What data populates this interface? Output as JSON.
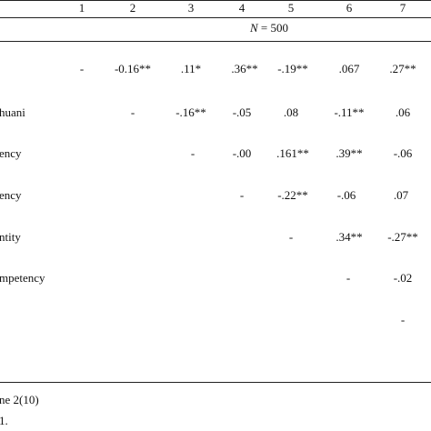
{
  "header": {
    "columns": [
      "1",
      "2",
      "3",
      "4",
      "5",
      "6",
      "7"
    ],
    "n_italic": "N",
    "n_rest": " = 500"
  },
  "rows": [
    {
      "label": "",
      "cells": [
        "-",
        "-0.16**",
        ".11*",
        ".36**",
        "-.19**",
        ".067",
        ".27**"
      ]
    },
    {
      "label": "huani",
      "cells": [
        "",
        "-",
        "-.16**",
        "-.05",
        ".08",
        "-.11**",
        ".06"
      ]
    },
    {
      "label": "ency",
      "cells": [
        "",
        "",
        "-",
        "-.00",
        ".161**",
        ".39**",
        "-.06"
      ]
    },
    {
      "label": "ency",
      "cells": [
        "",
        "",
        "",
        "-",
        "-.22**",
        "-.06",
        ".07"
      ]
    },
    {
      "label": "ntity",
      "cells": [
        "",
        "",
        "",
        "",
        "-",
        ".34**",
        "-.27**"
      ]
    },
    {
      "label": "mpetency",
      "cells": [
        "",
        "",
        "",
        "",
        "",
        "-",
        "-.02"
      ]
    },
    {
      "label": "",
      "cells": [
        "",
        "",
        "",
        "",
        "",
        "",
        "-"
      ]
    }
  ],
  "footer": {
    "note_line": "ne 2(10)",
    "second_line": "1."
  }
}
